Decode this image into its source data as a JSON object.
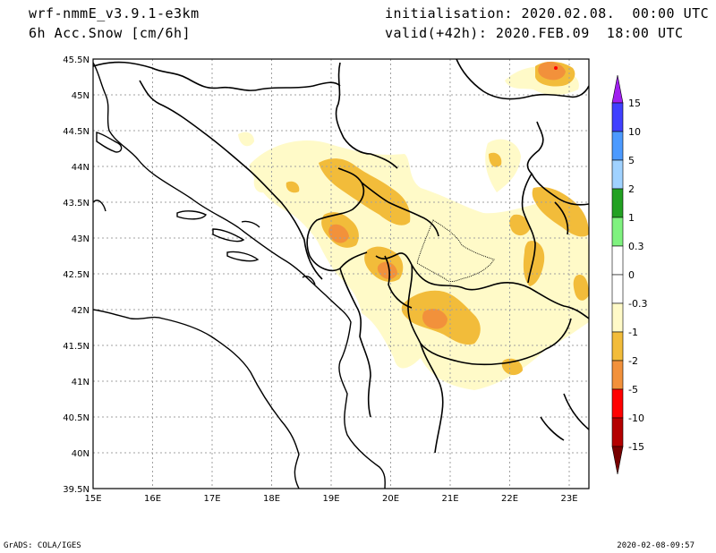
{
  "header": {
    "model": "wrf-nmmE_v3.9.1-e3km",
    "field": "6h Acc.Snow [cm/6h]",
    "init": "initialisation: 2020.02.08.  00:00 UTC",
    "valid": "valid(+42h): 2020.FEB.09  18:00 UTC"
  },
  "map": {
    "lat_labels": [
      "45.5N",
      "45N",
      "44.5N",
      "44N",
      "43.5N",
      "43N",
      "42.5N",
      "42N",
      "41.5N",
      "41N",
      "40.5N",
      "40N",
      "39.5N"
    ],
    "lon_labels": [
      "15E",
      "16E",
      "17E",
      "18E",
      "19E",
      "20E",
      "21E",
      "22E",
      "23E"
    ]
  },
  "legend": {
    "labels": [
      "15",
      "10",
      "5",
      "2",
      "1",
      "0.3",
      "0",
      "-0.3",
      "-1",
      "-2",
      "-5",
      "-10",
      "-15"
    ],
    "colors": [
      "#a020f0",
      "#4040ff",
      "#4c9aff",
      "#a0d2ff",
      "#22a122",
      "#7ff27f",
      "#ffffff",
      "#ffffff",
      "#fffac8",
      "#f2bc3a",
      "#f2913b",
      "#ff0000",
      "#b40000",
      "#780000"
    ]
  },
  "footer": {
    "credit": "GrADS: COLA/IGES",
    "timestamp": "2020-02-08-09:57"
  }
}
